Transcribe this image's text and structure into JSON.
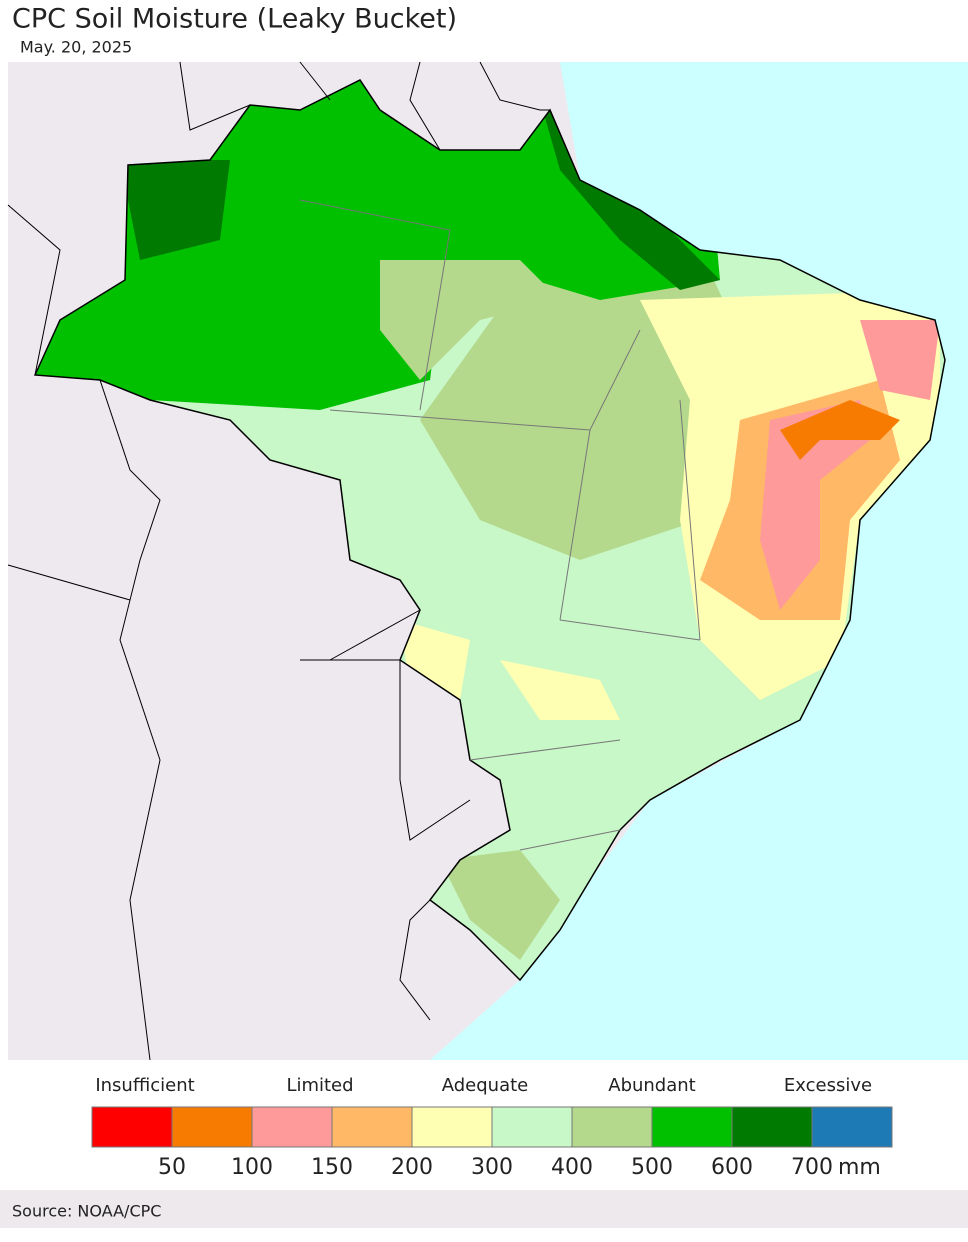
{
  "title": "CPC Soil Moisture (Leaky Bucket)",
  "date": "May. 20, 2025",
  "legend": {
    "categories": [
      "Insufficient",
      "Limited",
      "Adequate",
      "Abundant",
      "Excessive"
    ],
    "colors": [
      "#ff0000",
      "#f77b00",
      "#ff9a9a",
      "#ffb866",
      "#ffffb4",
      "#c8f7c8",
      "#b4d98c",
      "#00c000",
      "#007a00",
      "#1e7ab4"
    ],
    "ticks": [
      50,
      100,
      150,
      200,
      300,
      400,
      500,
      600,
      700
    ],
    "unit": "mm"
  },
  "source": "Source: NOAA/CPC"
}
